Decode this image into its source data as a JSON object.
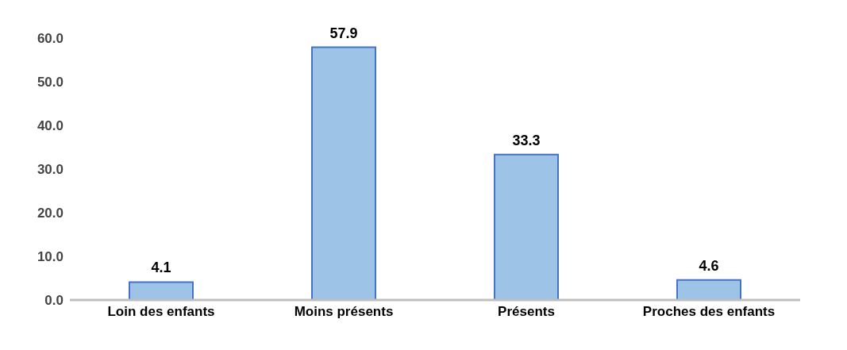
{
  "chart_data": {
    "type": "bar",
    "categories": [
      "Loin des enfants",
      "Moins présents",
      "Présents",
      "Proches des enfants"
    ],
    "values": [
      4.1,
      57.9,
      33.3,
      4.6
    ],
    "color": "#9dc3e6",
    "ylim": [
      0,
      60
    ],
    "yticks": [
      {
        "value": 0,
        "label": "0.0"
      },
      {
        "value": 10,
        "label": "10.0"
      },
      {
        "value": 20,
        "label": "20.0"
      },
      {
        "value": 30,
        "label": "30.0"
      },
      {
        "value": 40,
        "label": "40.0"
      },
      {
        "value": 50,
        "label": "50.0"
      },
      {
        "value": 60,
        "label": "60.0"
      }
    ],
    "grid": false,
    "data_labels": true
  }
}
